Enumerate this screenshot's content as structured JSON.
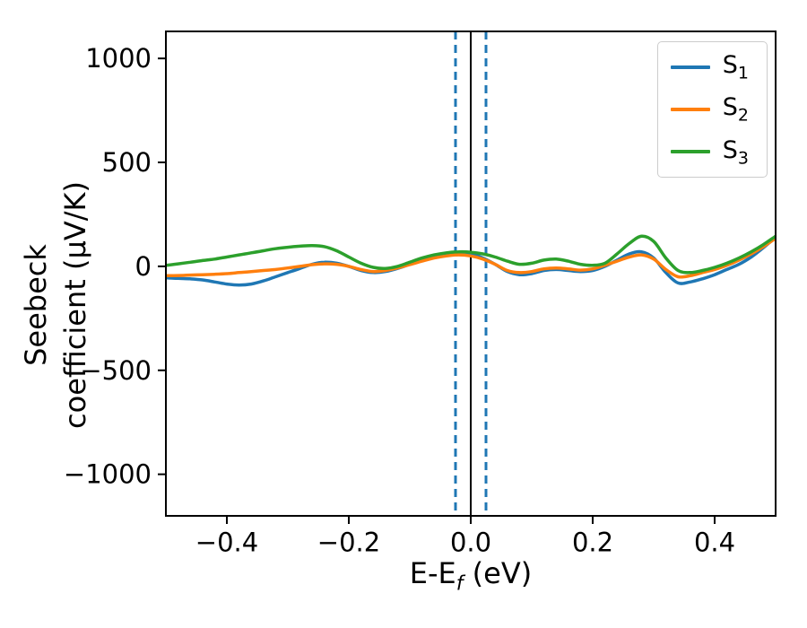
{
  "chart_data": {
    "type": "line",
    "title": "",
    "xlabel": {
      "main": "E-E",
      "sub": "f",
      "unit": " (eV)"
    },
    "ylabel_lines": [
      "Seebeck",
      "coefficient  (μV/K)"
    ],
    "xlim": [
      -0.5,
      0.5
    ],
    "ylim": [
      -1200,
      1130
    ],
    "grid": false,
    "legend_position": "upper right",
    "axis_color": "#000000",
    "xticks": {
      "values": [
        -0.4,
        -0.2,
        0.0,
        0.2,
        0.4
      ],
      "labels": [
        "−0.4",
        "−0.2",
        "0.0",
        "0.2",
        "0.4"
      ]
    },
    "yticks": {
      "values": [
        -1000,
        -500,
        0,
        500,
        1000
      ],
      "labels": [
        "−1000",
        "−500",
        "0",
        "500",
        "1000"
      ]
    },
    "x": [
      -0.5,
      -0.48,
      -0.46,
      -0.44,
      -0.42,
      -0.4,
      -0.38,
      -0.36,
      -0.34,
      -0.32,
      -0.3,
      -0.28,
      -0.26,
      -0.24,
      -0.22,
      -0.2,
      -0.18,
      -0.16,
      -0.14,
      -0.12,
      -0.1,
      -0.08,
      -0.06,
      -0.04,
      -0.02,
      0.0,
      0.02,
      0.04,
      0.06,
      0.08,
      0.1,
      0.12,
      0.14,
      0.16,
      0.18,
      0.2,
      0.22,
      0.24,
      0.26,
      0.28,
      0.3,
      0.32,
      0.34,
      0.36,
      0.38,
      0.4,
      0.42,
      0.44,
      0.46,
      0.48,
      0.5
    ],
    "series": [
      {
        "name": "S1",
        "label_main": "S",
        "label_sub": "1",
        "color": "#1f77b4",
        "values": [
          -55,
          -58,
          -60,
          -65,
          -75,
          -85,
          -90,
          -85,
          -70,
          -50,
          -30,
          -10,
          10,
          20,
          15,
          0,
          -20,
          -30,
          -25,
          -10,
          10,
          30,
          50,
          60,
          65,
          60,
          40,
          10,
          -25,
          -40,
          -35,
          -20,
          -15,
          -20,
          -25,
          -20,
          0,
          30,
          60,
          70,
          40,
          -30,
          -80,
          -75,
          -60,
          -40,
          -15,
          10,
          45,
          90,
          140
        ]
      },
      {
        "name": "S2",
        "label_main": "S",
        "label_sub": "2",
        "color": "#ff7f0e",
        "values": [
          -45,
          -44,
          -42,
          -40,
          -38,
          -35,
          -30,
          -25,
          -20,
          -15,
          -8,
          0,
          8,
          12,
          10,
          0,
          -15,
          -25,
          -20,
          -8,
          8,
          25,
          40,
          50,
          55,
          50,
          35,
          10,
          -20,
          -30,
          -25,
          -12,
          -8,
          -12,
          -18,
          -12,
          5,
          25,
          45,
          55,
          35,
          -15,
          -50,
          -45,
          -30,
          -15,
          5,
          30,
          60,
          95,
          135
        ]
      },
      {
        "name": "S3",
        "label_main": "S",
        "label_sub": "3",
        "color": "#2ca02c",
        "values": [
          5,
          12,
          20,
          28,
          35,
          45,
          55,
          65,
          75,
          85,
          92,
          97,
          100,
          95,
          75,
          45,
          15,
          -5,
          -10,
          0,
          20,
          40,
          55,
          65,
          70,
          68,
          60,
          45,
          25,
          10,
          15,
          30,
          35,
          25,
          10,
          5,
          15,
          60,
          110,
          145,
          120,
          40,
          -20,
          -30,
          -20,
          -5,
          15,
          40,
          70,
          105,
          145
        ]
      }
    ],
    "vlines": [
      {
        "x": 0.0,
        "color": "#000000",
        "style": "solid",
        "width": 2
      },
      {
        "x": -0.025,
        "color": "#1f77b4",
        "style": "dashed",
        "width": 3
      },
      {
        "x": 0.025,
        "color": "#1f77b4",
        "style": "dashed",
        "width": 3
      }
    ]
  }
}
